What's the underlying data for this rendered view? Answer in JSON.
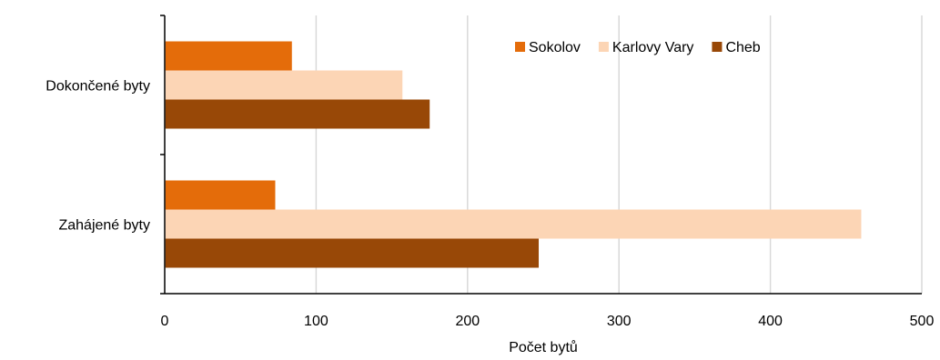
{
  "chart_data": {
    "type": "bar",
    "orientation": "horizontal",
    "categories": [
      "Dokončené byty",
      "Zahájené byty"
    ],
    "series": [
      {
        "name": "Sokolov",
        "color": "#E46C0A",
        "values": [
          84,
          73
        ]
      },
      {
        "name": "Karlovy Vary",
        "color": "#FCD5B5",
        "values": [
          157,
          460
        ]
      },
      {
        "name": "Cheb",
        "color": "#984807",
        "values": [
          175,
          247
        ]
      }
    ],
    "xlabel": "Počet bytů",
    "ylabel": "",
    "title": "",
    "xlim": [
      0,
      500
    ],
    "xticks": [
      "0",
      "100",
      "200",
      "300",
      "400",
      "500"
    ],
    "grid": "vertical",
    "grid_color": "#D9D9D9",
    "legend_position": "top-right",
    "legend_order": [
      "Sokolov",
      "Karlovy Vary",
      "Cheb"
    ]
  }
}
